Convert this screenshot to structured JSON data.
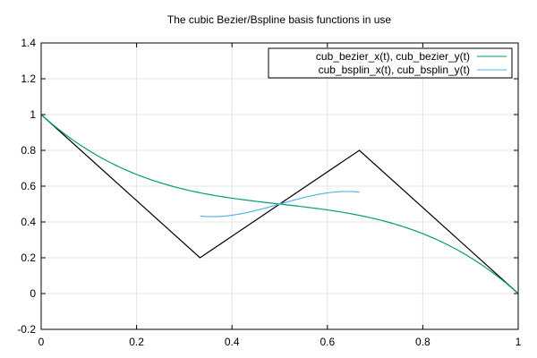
{
  "chart_data": {
    "type": "line",
    "title": "The cubic Bezier/Bspline basis functions in use",
    "xlabel": "",
    "ylabel": "",
    "xlim": [
      0,
      1
    ],
    "ylim": [
      -0.2,
      1.4
    ],
    "x_ticks": [
      "0",
      "0.2",
      "0.4",
      "0.6",
      "0.8",
      "1"
    ],
    "y_ticks": [
      "-0.2",
      "0",
      "0.2",
      "0.4",
      "0.6",
      "0.8",
      "1",
      "1.2",
      "1.4"
    ],
    "grid": true,
    "legend_position": "top-right",
    "control_polygon": {
      "color": "#000000",
      "points": [
        [
          0,
          1
        ],
        [
          0.333,
          0.2
        ],
        [
          0.667,
          0.8
        ],
        [
          1,
          0
        ]
      ]
    },
    "series": [
      {
        "name": "cub_bezier_x(t), cub_bezier_y(t)",
        "color": "#009e73",
        "control_points": [
          [
            0,
            1
          ],
          [
            0.333,
            0.2
          ],
          [
            0.667,
            0.8
          ],
          [
            1,
            0
          ]
        ]
      },
      {
        "name": "cub_bsplin_x(t), cub_bsplin_y(t)",
        "color": "#56b4e9",
        "control_points": [
          [
            0,
            1
          ],
          [
            0.333,
            0.2
          ],
          [
            0.667,
            0.8
          ],
          [
            1,
            0
          ]
        ]
      }
    ]
  }
}
